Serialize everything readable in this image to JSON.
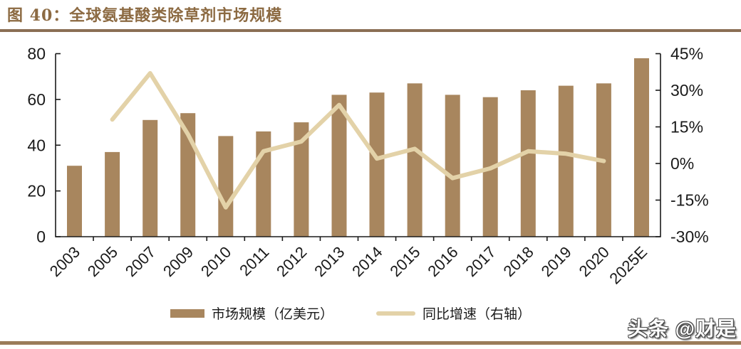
{
  "page": {
    "title": "图 40：全球氨基酸类除草剂市场规模",
    "watermark": "头条 @财是"
  },
  "colors": {
    "bar": "#A8865E",
    "line": "#E3D2A8",
    "title_text": "#8C6A42",
    "divider_top": "#8A6E54",
    "divider_bottom": "#9B7C5A",
    "axis": "#1A1A1A"
  },
  "chart_data": {
    "type": "bar",
    "title": "全球氨基酸类除草剂市场规模",
    "categories": [
      "2003",
      "2005",
      "2007",
      "2009",
      "2010",
      "2011",
      "2012",
      "2013",
      "2014",
      "2015",
      "2016",
      "2017",
      "2018",
      "2019",
      "2020",
      "2025E"
    ],
    "series": [
      {
        "name": "市场规模（亿美元）",
        "type": "bar",
        "axis": "left",
        "values": [
          31,
          37,
          51,
          54,
          44,
          46,
          50,
          62,
          63,
          67,
          62,
          61,
          64,
          66,
          67,
          78
        ]
      },
      {
        "name": "同比增速（右轴）",
        "type": "line",
        "axis": "right",
        "values": [
          null,
          18,
          37,
          12,
          -18,
          5,
          9,
          24,
          2,
          6,
          -6,
          -2,
          5,
          4,
          1,
          null
        ]
      }
    ],
    "left_axis": {
      "min": 0,
      "max": 80,
      "ticks": [
        0,
        20,
        40,
        60,
        80
      ]
    },
    "right_axis": {
      "min": -30,
      "max": 45,
      "ticks": [
        -30,
        -15,
        0,
        15,
        30,
        45
      ],
      "tick_labels": [
        "-30%",
        "-15%",
        "0%",
        "15%",
        "30%",
        "45%"
      ]
    },
    "legend_position": "bottom",
    "grid": false
  }
}
